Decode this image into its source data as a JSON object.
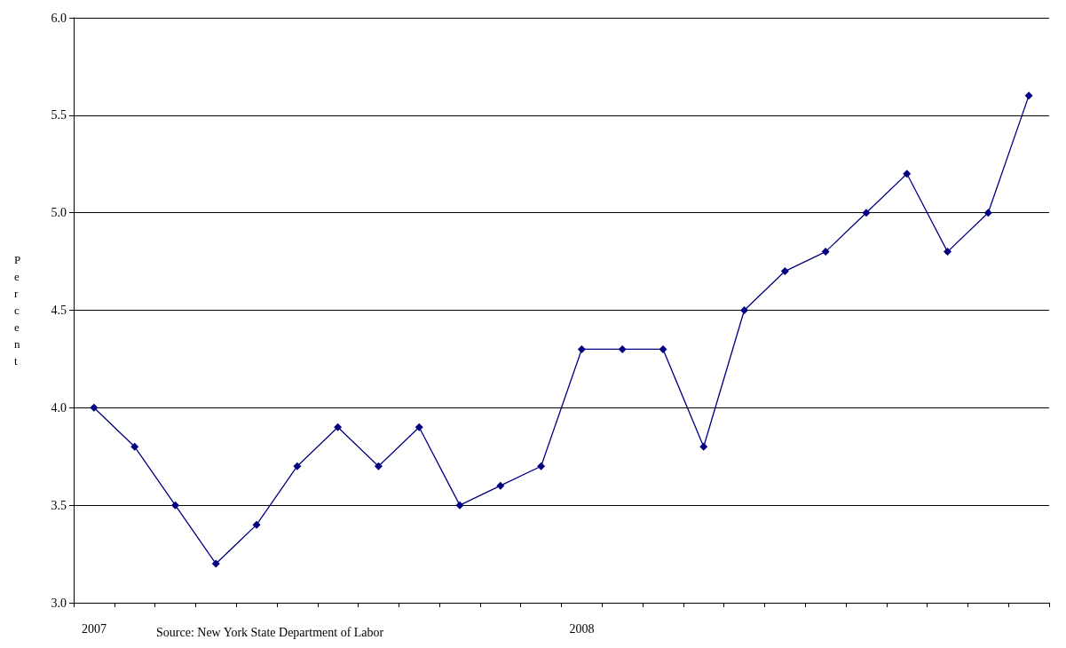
{
  "chart_data": {
    "type": "line",
    "ylabel": "Percent",
    "categories": [
      "2007",
      null,
      null,
      null,
      null,
      null,
      null,
      null,
      null,
      null,
      null,
      null,
      "2008",
      null,
      null,
      null,
      null,
      null,
      null,
      null,
      null,
      null,
      null,
      null
    ],
    "series": [
      {
        "color": "#000080",
        "values": [
          4.0,
          3.8,
          3.5,
          3.2,
          3.4,
          3.7,
          3.9,
          3.7,
          3.9,
          3.5,
          3.6,
          3.7,
          4.3,
          4.3,
          4.3,
          3.8,
          4.5,
          4.7,
          4.8,
          5.0,
          5.2,
          4.8,
          5.0,
          5.6
        ]
      }
    ],
    "ylim": [
      3.0,
      6.0
    ],
    "yticks": [
      {
        "value": 3.0,
        "label": "3.0"
      },
      {
        "value": 3.5,
        "label": "3.5"
      },
      {
        "value": 4.0,
        "label": "4.0"
      },
      {
        "value": 4.5,
        "label": "4.5"
      },
      {
        "value": 5.0,
        "label": "5.0"
      },
      {
        "value": 5.5,
        "label": "5.5"
      },
      {
        "value": 6.0,
        "label": "6.0"
      }
    ],
    "grid": "y",
    "marker": "diamond",
    "line_style": "solid",
    "annotations": [
      "Source: New York State Department of Labor"
    ]
  }
}
